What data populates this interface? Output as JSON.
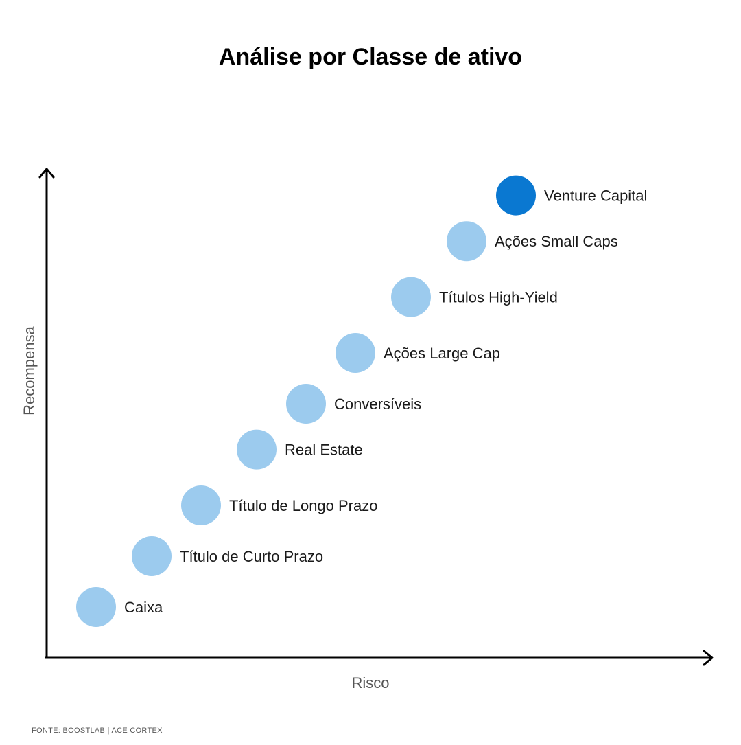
{
  "chart_data": {
    "type": "scatter",
    "title": "Análise por Classe de ativo",
    "xlabel": "Risco",
    "ylabel": "Recompensa",
    "grid": false,
    "legend": "none",
    "xlim": [
      0,
      10
    ],
    "ylim": [
      0,
      10
    ],
    "points": [
      {
        "label": "Caixa",
        "x": 0.8,
        "y": 1.0,
        "highlight": false
      },
      {
        "label": "Título de Curto Prazo",
        "x": 1.7,
        "y": 2.0,
        "highlight": false
      },
      {
        "label": "Título de Longo Prazo",
        "x": 2.5,
        "y": 3.0,
        "highlight": false
      },
      {
        "label": "Real Estate",
        "x": 3.4,
        "y": 4.1,
        "highlight": false
      },
      {
        "label": "Conversíveis",
        "x": 4.2,
        "y": 5.0,
        "highlight": false
      },
      {
        "label": "Ações Large Cap",
        "x": 5.0,
        "y": 6.0,
        "highlight": false
      },
      {
        "label": "Títulos High-Yield",
        "x": 5.9,
        "y": 7.1,
        "highlight": false
      },
      {
        "label": "Ações Small Caps",
        "x": 6.8,
        "y": 8.2,
        "highlight": false
      },
      {
        "label": "Venture Capital",
        "x": 7.6,
        "y": 9.1,
        "highlight": true
      }
    ],
    "colors": {
      "point": "#9ccbee",
      "highlight": "#0a78d1",
      "axis": "#000000"
    }
  },
  "source": "FONTE: BOOSTLAB | ACE CORTEX"
}
